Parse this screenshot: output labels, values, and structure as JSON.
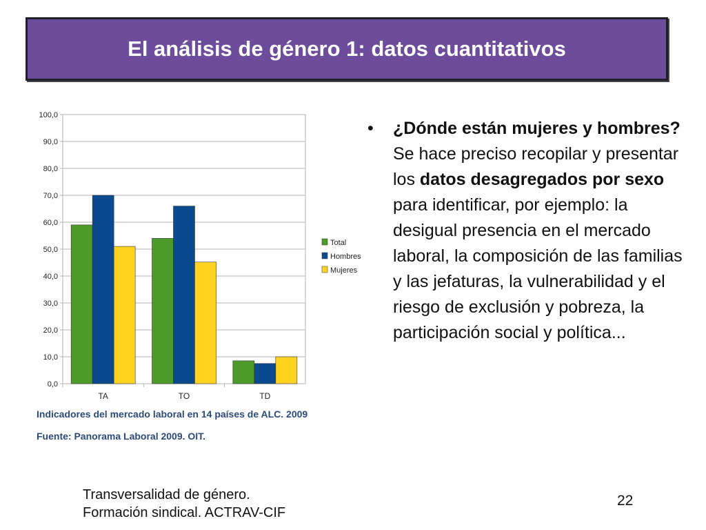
{
  "slide": {
    "title": "El análisis de género 1: datos cuantitativos",
    "bullet": {
      "symbol": "•",
      "segments": [
        {
          "text": "¿Dónde están mujeres y hombres?",
          "bold": true
        },
        {
          "text": " Se hace preciso recopilar y presentar los ",
          "bold": false
        },
        {
          "text": "datos desagregados por sexo",
          "bold": true
        },
        {
          "text": " para identificar, por ejemplo: la desigual presencia en el mercado laboral, la composición de las familias y las jefaturas, la vulnerabilidad y el riesgo de exclusión y pobreza, la participación social y política...",
          "bold": false
        }
      ]
    },
    "footer": {
      "line1": "Transversalidad de género.",
      "line2": "Formación sindical. ACTRAV-CIF"
    },
    "page_number": "22"
  },
  "chart_data": {
    "type": "bar",
    "categories": [
      "TA",
      "TO",
      "TD"
    ],
    "series": [
      {
        "name": "Total",
        "color": "#4e9a2a",
        "values": [
          59.0,
          54.0,
          8.5
        ]
      },
      {
        "name": "Hombres",
        "color": "#0b4a8e",
        "values": [
          70.0,
          66.0,
          7.5
        ]
      },
      {
        "name": "Mujeres",
        "color": "#ffd320",
        "values": [
          51.0,
          45.2,
          10.0
        ]
      }
    ],
    "ylim": [
      0,
      100
    ],
    "yticks": [
      "0,0",
      "10,0",
      "20,0",
      "30,0",
      "40,0",
      "50,0",
      "60,0",
      "70,0",
      "80,0",
      "90,0",
      "100,0"
    ],
    "grid": true,
    "legend_position": "right",
    "caption_1": "Indicadores del mercado laboral en 14 países de ALC. 2009",
    "caption_2": "Fuente: Panorama Laboral 2009. OIT."
  }
}
